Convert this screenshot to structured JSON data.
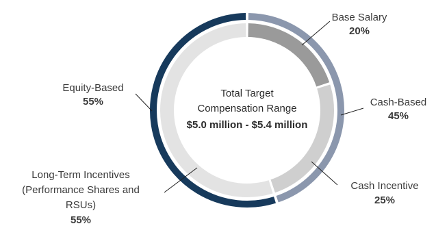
{
  "chart_data": {
    "type": "pie",
    "center": {
      "line1": "Total Target",
      "line2": "Compensation Range",
      "line3": "$5.0 million - $5.4 million"
    },
    "outer_ring": {
      "slices": [
        {
          "key": "cash_based",
          "label": "Cash-Based",
          "value_label": "45%",
          "value": 45,
          "color": "#8b97ad"
        },
        {
          "key": "equity_based",
          "label": "Equity-Based",
          "value_label": "55%",
          "value": 55,
          "color": "#173a5c"
        }
      ]
    },
    "inner_ring": {
      "slices": [
        {
          "key": "base_salary",
          "label": "Base Salary",
          "value_label": "20%",
          "value": 20,
          "color": "#9a9a9a"
        },
        {
          "key": "cash_incentive",
          "label": "Cash Incentive",
          "value_label": "25%",
          "value": 25,
          "color": "#cfcfcf"
        },
        {
          "key": "lti",
          "label_lines": [
            "Long-Term Incentives",
            "(Performance Shares and",
            "RSUs)"
          ],
          "value_label": "55%",
          "value": 55,
          "color": "#e3e3e3"
        }
      ]
    }
  }
}
